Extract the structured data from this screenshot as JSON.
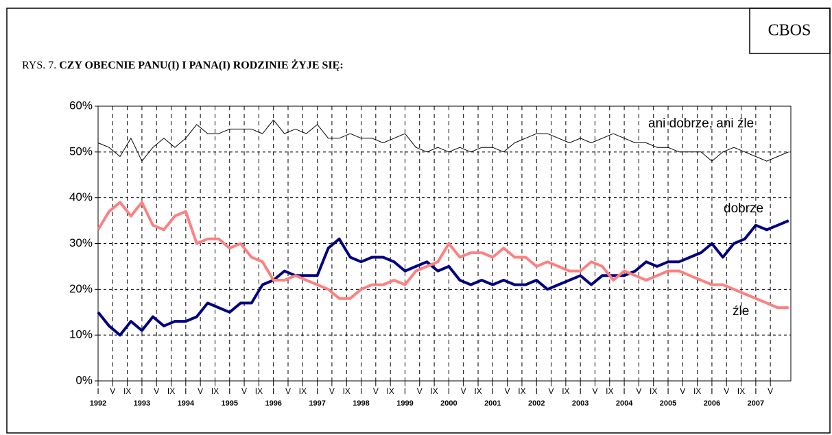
{
  "brand": "CBOS",
  "chart_data": {
    "type": "line",
    "title_prefix": "RYS. 7.",
    "title": "CZY OBECNIE PANU(I) I PANA(I) RODZINIE ŻYJE SIĘ:",
    "x": [
      1992,
      1992.25,
      1992.5,
      1992.75,
      1993,
      1993.25,
      1993.5,
      1993.75,
      1994,
      1994.25,
      1994.5,
      1994.75,
      1995,
      1995.25,
      1995.5,
      1995.75,
      1996,
      1996.25,
      1996.5,
      1996.75,
      1997,
      1997.25,
      1997.5,
      1997.75,
      1998,
      1998.25,
      1998.5,
      1998.75,
      1999,
      1999.25,
      1999.5,
      1999.75,
      2000,
      2000.25,
      2000.5,
      2000.75,
      2001,
      2001.25,
      2001.5,
      2001.75,
      2002,
      2002.25,
      2002.5,
      2002.75,
      2003,
      2003.25,
      2003.5,
      2003.75,
      2004,
      2004.25,
      2004.5,
      2004.75,
      2005,
      2005.25,
      2005.5,
      2005.75,
      2006,
      2006.25,
      2006.5,
      2006.75,
      2007,
      2007.25,
      2007.5,
      2007.75
    ],
    "series": [
      {
        "name": "ani dobrze, ani źle",
        "color": "#000000",
        "width": 1,
        "values": [
          52,
          51,
          49,
          53,
          48,
          51,
          53,
          51,
          53,
          56,
          54,
          54,
          55,
          55,
          55,
          54,
          57,
          54,
          55,
          54,
          56,
          53,
          53,
          54,
          53,
          53,
          52,
          53,
          54,
          51,
          50,
          51,
          50,
          51,
          50,
          51,
          51,
          50,
          52,
          53,
          54,
          54,
          53,
          52,
          53,
          52,
          53,
          54,
          53,
          52,
          52,
          51,
          51,
          50,
          50,
          50,
          48,
          50,
          51,
          50,
          49,
          48,
          49,
          50
        ]
      },
      {
        "name": "dobrze",
        "color": "#000080",
        "width": 4,
        "values": [
          15,
          12,
          10,
          13,
          11,
          14,
          12,
          13,
          13,
          14,
          17,
          16,
          15,
          17,
          17,
          21,
          22,
          24,
          23,
          23,
          23,
          29,
          31,
          27,
          26,
          27,
          27,
          26,
          24,
          25,
          26,
          24,
          25,
          22,
          21,
          22,
          21,
          22,
          21,
          21,
          22,
          20,
          21,
          22,
          23,
          21,
          23,
          23,
          23,
          24,
          26,
          25,
          26,
          26,
          27,
          28,
          30,
          27,
          30,
          31,
          34,
          33,
          34,
          35
        ]
      },
      {
        "name": "źle",
        "color": "#ff8080",
        "width": 4,
        "values": [
          33,
          37,
          39,
          36,
          39,
          34,
          33,
          36,
          37,
          30,
          31,
          31,
          29,
          30,
          27,
          26,
          22,
          22,
          23,
          22,
          21,
          20,
          18,
          18,
          20,
          21,
          21,
          22,
          21,
          24,
          25,
          26,
          30,
          27,
          28,
          28,
          27,
          29,
          27,
          27,
          25,
          26,
          25,
          24,
          24,
          26,
          25,
          22,
          24,
          23,
          22,
          23,
          24,
          24,
          23,
          22,
          21,
          21,
          20,
          19,
          18,
          17,
          16,
          16
        ]
      }
    ],
    "xlim": [
      1992,
      2007.8
    ],
    "ylim": [
      0,
      60
    ],
    "yticks": [
      {
        "value": 0,
        "label": "0%"
      },
      {
        "value": 10,
        "label": "10%"
      },
      {
        "value": 20,
        "label": "20%"
      },
      {
        "value": 30,
        "label": "30%"
      },
      {
        "value": 40,
        "label": "40%"
      },
      {
        "value": 50,
        "label": "50%"
      },
      {
        "value": 60,
        "label": "60%"
      }
    ],
    "xticks": [
      {
        "value": 1992,
        "label": "I"
      },
      {
        "value": 1992.333,
        "label": "V"
      },
      {
        "value": 1992.667,
        "label": "IX"
      },
      {
        "value": 1993,
        "label": "I"
      },
      {
        "value": 1993.333,
        "label": "V"
      },
      {
        "value": 1993.667,
        "label": "IX"
      },
      {
        "value": 1994,
        "label": "I"
      },
      {
        "value": 1994.333,
        "label": "V"
      },
      {
        "value": 1994.667,
        "label": "IX"
      },
      {
        "value": 1995,
        "label": "I"
      },
      {
        "value": 1995.333,
        "label": "V"
      },
      {
        "value": 1995.667,
        "label": "IX"
      },
      {
        "value": 1996,
        "label": "I"
      },
      {
        "value": 1996.333,
        "label": "V"
      },
      {
        "value": 1996.667,
        "label": "IX"
      },
      {
        "value": 1997,
        "label": "I"
      },
      {
        "value": 1997.333,
        "label": "V"
      },
      {
        "value": 1997.667,
        "label": "IX"
      },
      {
        "value": 1998,
        "label": "I"
      },
      {
        "value": 1998.333,
        "label": "V"
      },
      {
        "value": 1998.667,
        "label": "IX"
      },
      {
        "value": 1999,
        "label": "I"
      },
      {
        "value": 1999.333,
        "label": "V"
      },
      {
        "value": 1999.667,
        "label": "IX"
      },
      {
        "value": 2000,
        "label": "I"
      },
      {
        "value": 2000.333,
        "label": "V"
      },
      {
        "value": 2000.667,
        "label": "IX"
      },
      {
        "value": 2001,
        "label": "I"
      },
      {
        "value": 2001.333,
        "label": "V"
      },
      {
        "value": 2001.667,
        "label": "IX"
      },
      {
        "value": 2002,
        "label": "I"
      },
      {
        "value": 2002.333,
        "label": "V"
      },
      {
        "value": 2002.667,
        "label": "IX"
      },
      {
        "value": 2003,
        "label": "I"
      },
      {
        "value": 2003.333,
        "label": "V"
      },
      {
        "value": 2003.667,
        "label": "IX"
      },
      {
        "value": 2004,
        "label": "I"
      },
      {
        "value": 2004.333,
        "label": "V"
      },
      {
        "value": 2004.667,
        "label": "IX"
      },
      {
        "value": 2005,
        "label": "I"
      },
      {
        "value": 2005.333,
        "label": "V"
      },
      {
        "value": 2005.667,
        "label": "IX"
      },
      {
        "value": 2006,
        "label": "I"
      },
      {
        "value": 2006.333,
        "label": "V"
      },
      {
        "value": 2006.667,
        "label": "IX"
      },
      {
        "value": 2007,
        "label": "I"
      },
      {
        "value": 2007.333,
        "label": "V"
      }
    ],
    "year_labels": [
      1992,
      1993,
      1994,
      1995,
      1996,
      1997,
      1998,
      1999,
      2000,
      2001,
      2002,
      2003,
      2004,
      2005,
      2006,
      2007
    ],
    "grid": true
  }
}
